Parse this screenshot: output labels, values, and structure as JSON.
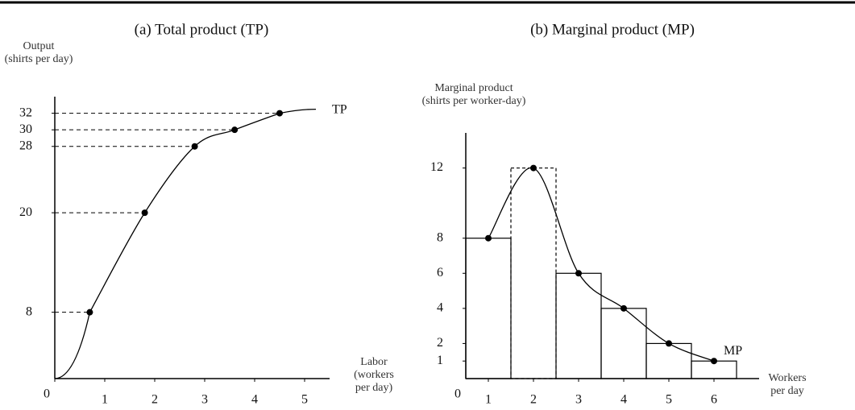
{
  "chart_data": [
    {
      "type": "line",
      "title": "(a) Total product (TP)",
      "y_label": [
        "Output",
        "(shirts per day)"
      ],
      "x_label": [
        "Labor",
        "(workers",
        "per day)"
      ],
      "x": [
        0.7,
        1.8,
        2.8,
        3.6,
        4.5
      ],
      "series": [
        {
          "name": "TP",
          "color": "#000000",
          "values": [
            8,
            20,
            28,
            30,
            32
          ]
        }
      ],
      "xlim": [
        0,
        5.5
      ],
      "ylim": [
        0,
        34
      ],
      "xticks": [
        0,
        1,
        2,
        3,
        4,
        5
      ],
      "yticks": [
        8,
        20,
        28,
        30,
        32
      ],
      "guides": true
    },
    {
      "type": "bar",
      "title": "(b) Marginal product (MP)",
      "y_label": [
        "Marginal product",
        "(shirts per worker-day)"
      ],
      "x_label": [
        "Workers",
        "per day"
      ],
      "origin_label": "0",
      "x": [
        1,
        2,
        3,
        4,
        5,
        6
      ],
      "series": [
        {
          "name": "MP",
          "color": "#000000",
          "values": [
            8,
            12,
            6,
            4,
            2,
            1
          ]
        }
      ],
      "xlim": [
        0.5,
        7
      ],
      "ylim": [
        0,
        14
      ],
      "xticks": [
        1,
        2,
        3,
        4,
        5,
        6
      ],
      "yticks": [
        1,
        2,
        4,
        6,
        8,
        12
      ]
    }
  ]
}
